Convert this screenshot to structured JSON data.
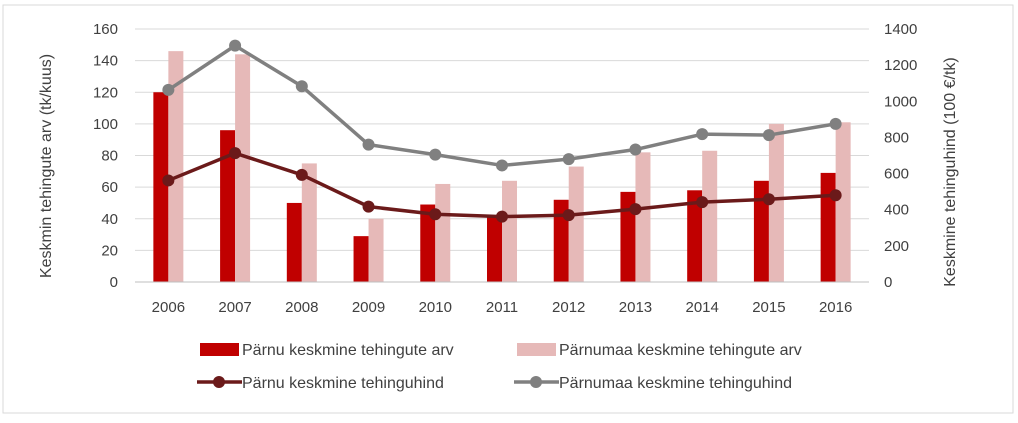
{
  "chart_data": {
    "type": "bar",
    "combo": "bar+line, dual y-axis",
    "categories": [
      "2006",
      "2007",
      "2008",
      "2009",
      "2010",
      "2011",
      "2012",
      "2013",
      "2014",
      "2015",
      "2016"
    ],
    "y_left": {
      "label": "Keskmin tehingute arv (tk/kuus)",
      "range": [
        0,
        160
      ],
      "ticks": [
        0,
        20,
        40,
        60,
        80,
        100,
        120,
        140,
        160
      ]
    },
    "y_right": {
      "label": "Keskmine tehinguhind (100 €/tk)",
      "range": [
        0,
        1400
      ],
      "ticks": [
        0,
        200,
        400,
        600,
        800,
        1000,
        1200,
        1400
      ]
    },
    "grid": true,
    "legend_position": "bottom",
    "series": [
      {
        "name": "Pärnu keskmine tehingute arv",
        "type": "bar",
        "axis": "left",
        "color": "#c00000",
        "values": [
          120,
          96,
          50,
          29,
          49,
          41,
          52,
          57,
          58,
          64,
          69
        ]
      },
      {
        "name": "Pärnumaa keskmine tehingute arv",
        "type": "bar",
        "axis": "left",
        "color": "#e6b9b8",
        "values": [
          146,
          144,
          75,
          40,
          62,
          64,
          73,
          82,
          83,
          100,
          101
        ]
      },
      {
        "name": "Pärnu keskmine tehinguhind",
        "type": "line",
        "axis": "right",
        "color": "#6b1a1a",
        "values": [
          562,
          713,
          593,
          417,
          375,
          362,
          370,
          403,
          442,
          458,
          480
        ]
      },
      {
        "name": "Pärnumaa keskmine tehinguhind",
        "type": "line",
        "axis": "right",
        "color": "#808080",
        "values": [
          1063,
          1308,
          1083,
          760,
          705,
          645,
          680,
          733,
          818,
          813,
          875
        ]
      }
    ]
  }
}
